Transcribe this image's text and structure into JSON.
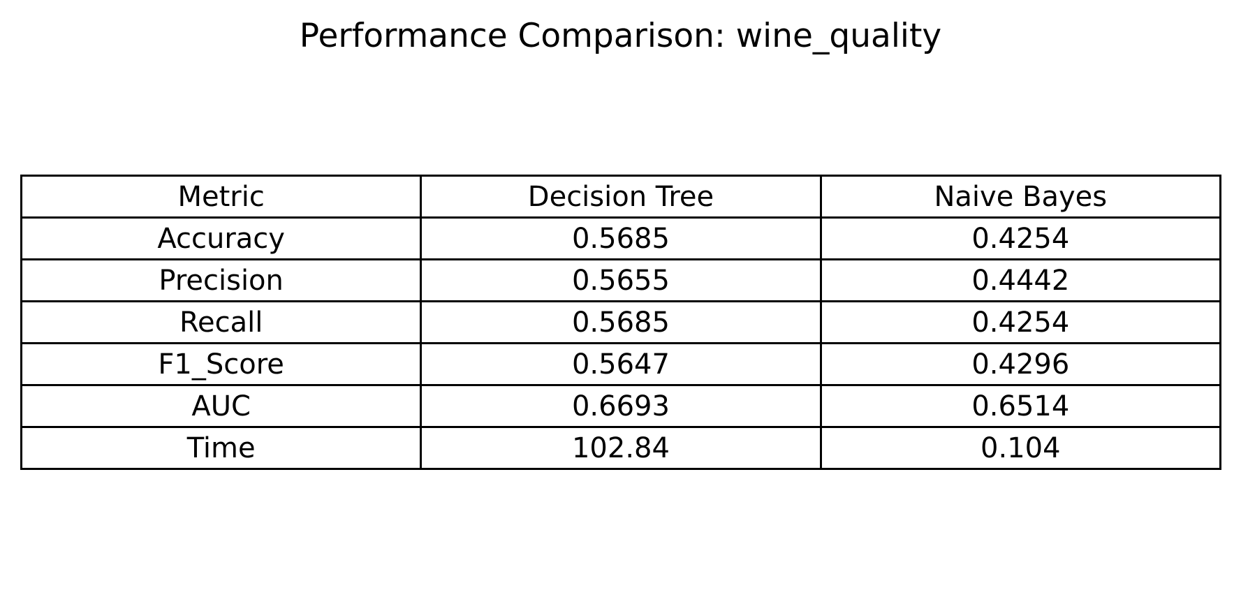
{
  "chart_data": {
    "type": "table",
    "title": "Performance Comparison: wine_quality",
    "columns": [
      "Metric",
      "Decision Tree",
      "Naive Bayes"
    ],
    "rows": [
      [
        "Accuracy",
        "0.5685",
        "0.4254"
      ],
      [
        "Precision",
        "0.5655",
        "0.4442"
      ],
      [
        "Recall",
        "0.5685",
        "0.4254"
      ],
      [
        "F1_Score",
        "0.5647",
        "0.4296"
      ],
      [
        "AUC",
        "0.6693",
        "0.6514"
      ],
      [
        "Time",
        "102.84",
        "0.104"
      ]
    ]
  }
}
